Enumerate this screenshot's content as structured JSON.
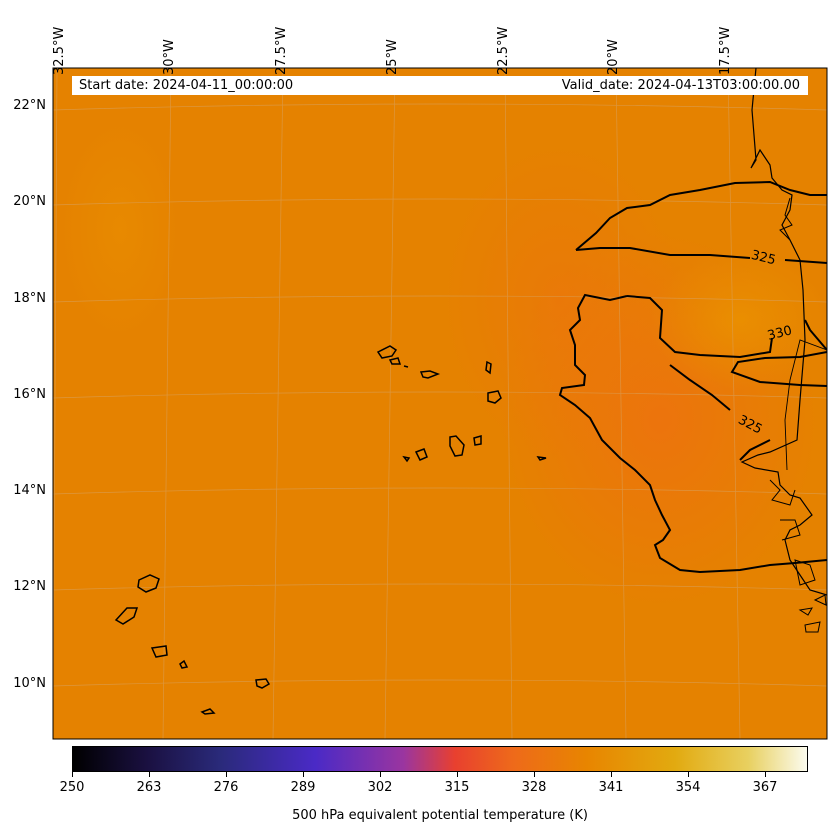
{
  "map": {
    "start_date": "Start date: 2024-04-11_00:00:00",
    "valid_date": "Valid_date: 2024-04-13T03:00:00.00",
    "lon_labels": [
      "32.5°W",
      "30°W",
      "27.5°W",
      "25°W",
      "22.5°W",
      "20°W",
      "17.5°W"
    ],
    "lat_labels": [
      "22°N",
      "20°N",
      "18°N",
      "16°N",
      "14°N",
      "12°N",
      "10°N"
    ],
    "contour_labels": [
      "325",
      "330",
      "325"
    ],
    "field_color": "#e58200",
    "field_highlight": "#ee7a10"
  },
  "colorbar": {
    "ticks": [
      "250",
      "263",
      "276",
      "289",
      "302",
      "315",
      "328",
      "341",
      "354",
      "367"
    ],
    "title": "500 hPa equivalent potential temperature (K)"
  }
}
